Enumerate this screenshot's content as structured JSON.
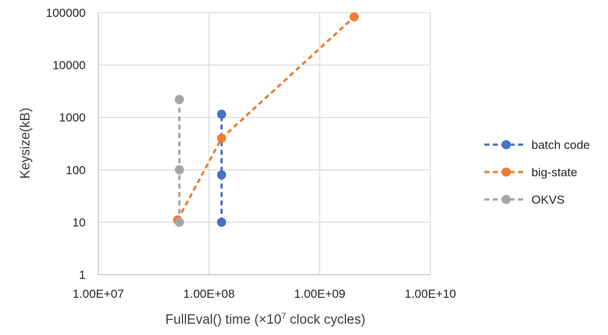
{
  "chart_data": {
    "type": "scatter",
    "title": "",
    "xlabel": "FullEval() time (×10",
    "xlabel_superscript": "7",
    "xlabel_suffix": " clock cycles)",
    "ylabel": "Keysize(kB)",
    "x_scale": "log",
    "y_scale": "log",
    "xlim": [
      10000000,
      10000000000
    ],
    "ylim": [
      1,
      100000
    ],
    "x_ticks": [
      10000000,
      100000000,
      1000000000,
      10000000000
    ],
    "x_tick_labels": [
      "1.00E+07",
      "1.00E+08",
      "1.00E+09",
      "1.00E+10"
    ],
    "y_ticks": [
      1,
      10,
      100,
      1000,
      10000,
      100000
    ],
    "y_tick_labels": [
      "1",
      "10",
      "100",
      "1000",
      "10000",
      "100000"
    ],
    "grid": true,
    "legend_position": "right",
    "line_style": "dashed",
    "series": [
      {
        "name": "batch code",
        "color": "#4472C4",
        "points": [
          [
            130000000,
            10
          ],
          [
            130000000,
            80
          ],
          [
            130000000,
            1150
          ]
        ]
      },
      {
        "name": "big-state",
        "color": "#ED7D31",
        "points": [
          [
            52000000,
            11
          ],
          [
            130000000,
            400
          ],
          [
            2050000000,
            83000
          ]
        ]
      },
      {
        "name": "OKVS",
        "color": "#A5A5A5",
        "points": [
          [
            54000000,
            10
          ],
          [
            54000000,
            100
          ],
          [
            54000000,
            2200
          ]
        ]
      }
    ]
  }
}
